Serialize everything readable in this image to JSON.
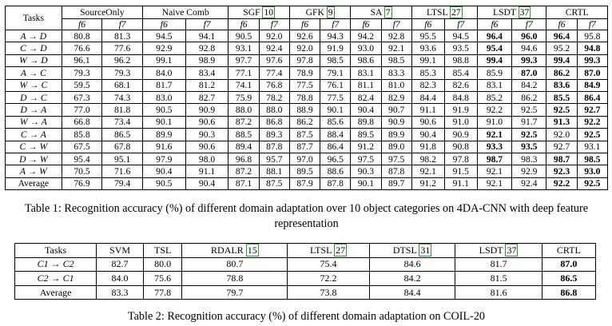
{
  "table1": {
    "task_header": "Tasks",
    "methods": [
      {
        "name": "SourceOnly",
        "cite": ""
      },
      {
        "name": "Naive Comb",
        "cite": ""
      },
      {
        "name": "SGF",
        "cite": "10"
      },
      {
        "name": "GFK",
        "cite": "9"
      },
      {
        "name": "SA",
        "cite": "7"
      },
      {
        "name": "LTSL",
        "cite": "27"
      },
      {
        "name": "LSDT",
        "cite": "37"
      },
      {
        "name": "CRTL",
        "cite": ""
      }
    ],
    "sub_headers": [
      "f6",
      "f7"
    ],
    "rows": [
      {
        "task": "A → D",
        "values": [
          "80.8",
          "81.3",
          "94.5",
          "94.1",
          "90.5",
          "92.0",
          "92.6",
          "94.3",
          "94.2",
          "92.8",
          "95.5",
          "94.5",
          "96.4",
          "96.0",
          "96.4",
          "95.8"
        ],
        "bold": [
          12,
          13,
          14
        ]
      },
      {
        "task": "C → D",
        "values": [
          "76.6",
          "77.6",
          "92.9",
          "92.8",
          "93.1",
          "92.4",
          "92.0",
          "91.9",
          "93.0",
          "92.1",
          "93.6",
          "93.5",
          "95.4",
          "94.6",
          "95.2",
          "94.8"
        ],
        "bold": [
          12,
          15
        ]
      },
      {
        "task": "W → D",
        "values": [
          "96.1",
          "96.2",
          "99.1",
          "98.9",
          "97.7",
          "97.6",
          "97.8",
          "98.5",
          "98.6",
          "98.5",
          "99.1",
          "98.8",
          "99.4",
          "99.3",
          "99.4",
          "99.3"
        ],
        "bold": [
          12,
          13,
          14,
          15
        ]
      },
      {
        "task": "A → C",
        "values": [
          "79.3",
          "79.3",
          "84.0",
          "83.4",
          "77.1",
          "77.4",
          "78.9",
          "79.1",
          "83.1",
          "83.3",
          "85.3",
          "85.4",
          "85.9",
          "87.0",
          "86.2",
          "87.0"
        ],
        "bold": [
          13,
          14,
          15
        ]
      },
      {
        "task": "W → C",
        "values": [
          "59.5",
          "68.1",
          "81.7",
          "81.2",
          "74.1",
          "76.8",
          "77.5",
          "76.1",
          "81.1",
          "81.0",
          "82.3",
          "82.6",
          "83.1",
          "84.2",
          "83.6",
          "84.9"
        ],
        "bold": [
          14,
          15
        ]
      },
      {
        "task": "D → C",
        "values": [
          "67.3",
          "74.3",
          "83.0",
          "82.7",
          "75.9",
          "78.2",
          "78.8",
          "77.5",
          "82.4",
          "82.9",
          "84.4",
          "84.8",
          "85.2",
          "86.2",
          "85.5",
          "86.4"
        ],
        "bold": [
          14,
          15
        ]
      },
      {
        "task": "D → A",
        "values": [
          "77.0",
          "81.8",
          "90.5",
          "90.9",
          "88.0",
          "88.0",
          "88.9",
          "90.1",
          "90.4",
          "90.7",
          "91.1",
          "91.9",
          "92.2",
          "92.5",
          "92.5",
          "92.7"
        ],
        "bold": [
          14,
          15
        ]
      },
      {
        "task": "W → A",
        "values": [
          "66.8",
          "73.4",
          "90.1",
          "90.6",
          "87.2",
          "86.8",
          "86.2",
          "85.6",
          "89.8",
          "90.9",
          "90.6",
          "91.0",
          "91.0",
          "91.7",
          "91.3",
          "92.2"
        ],
        "bold": [
          14,
          15
        ]
      },
      {
        "task": "C → A",
        "values": [
          "85.8",
          "86.5",
          "89.9",
          "90.3",
          "88.5",
          "89.3",
          "87.5",
          "88.4",
          "89.5",
          "89.9",
          "90.4",
          "90.9",
          "92.1",
          "92.5",
          "92.0",
          "92.5"
        ],
        "bold": [
          12,
          13,
          15
        ]
      },
      {
        "task": "C → W",
        "values": [
          "67.5",
          "67.8",
          "91.6",
          "90.6",
          "89.4",
          "87.8",
          "87.7",
          "86.4",
          "91.2",
          "89.0",
          "91.8",
          "90.8",
          "93.3",
          "93.5",
          "92.7",
          "93.1"
        ],
        "bold": [
          12,
          13
        ]
      },
      {
        "task": "D → W",
        "values": [
          "95.4",
          "95.1",
          "97.9",
          "98.0",
          "96.8",
          "95.7",
          "97.0",
          "96.5",
          "97.5",
          "97.5",
          "98.2",
          "97.8",
          "98.7",
          "98.3",
          "98.7",
          "98.5"
        ],
        "bold": [
          12,
          14,
          15
        ]
      },
      {
        "task": "A → W",
        "values": [
          "70.5",
          "71.6",
          "90.4",
          "91.1",
          "87.2",
          "88.1",
          "89.5",
          "88.6",
          "90.3",
          "87.8",
          "92.1",
          "91.5",
          "92.1",
          "92.9",
          "92.3",
          "93.0"
        ],
        "bold": [
          14,
          15
        ]
      },
      {
        "task": "Average",
        "values": [
          "76.9",
          "79.4",
          "90.5",
          "90.4",
          "87.1",
          "87.5",
          "87.9",
          "87.8",
          "90.1",
          "89.7",
          "91.2",
          "91.1",
          "92.1",
          "92.4",
          "92.2",
          "92.5"
        ],
        "bold": [
          14,
          15
        ]
      }
    ]
  },
  "caption1": "Table 1: Recognition accuracy (%) of different domain adaptation over 10 object categories on 4DA-CNN with deep feature representation",
  "table2": {
    "headers": [
      {
        "name": "Tasks",
        "cite": ""
      },
      {
        "name": "SVM",
        "cite": ""
      },
      {
        "name": "TSL",
        "cite": ""
      },
      {
        "name": "RDALR",
        "cite": "15"
      },
      {
        "name": "LTSL",
        "cite": "27"
      },
      {
        "name": "DTSL",
        "cite": "31"
      },
      {
        "name": "LSDT",
        "cite": "37"
      },
      {
        "name": "CRTL",
        "cite": ""
      }
    ],
    "rows": [
      {
        "task": "C1 → C2",
        "values": [
          "82.7",
          "80.0",
          "80.7",
          "75.4",
          "84.6",
          "81.7",
          "87.0"
        ],
        "bold": [
          6
        ]
      },
      {
        "task": "C2 → C1",
        "values": [
          "84.0",
          "75.6",
          "78.8",
          "72.2",
          "84.2",
          "81.5",
          "86.5"
        ],
        "bold": [
          6
        ]
      },
      {
        "task": "Average",
        "values": [
          "83.3",
          "77.8",
          "79.7",
          "73.8",
          "84.4",
          "81.6",
          "86.8"
        ],
        "bold": [
          6
        ]
      }
    ]
  },
  "caption2": "Table 2: Recognition accuracy (%) of different domain adaptation on COIL-20"
}
